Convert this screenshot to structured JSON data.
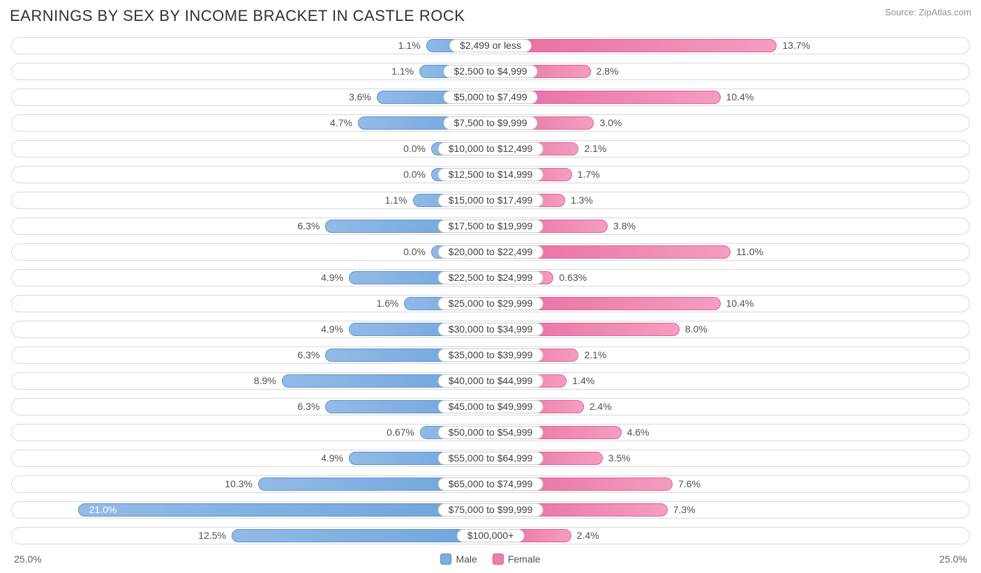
{
  "title": "EARNINGS BY SEX BY INCOME BRACKET IN CASTLE ROCK",
  "source": "Source: ZipAtlas.com",
  "axis_max": 25.0,
  "axis_left_label": "25.0%",
  "axis_right_label": "25.0%",
  "default_male_padding": 75,
  "default_female_padding": 75,
  "colors": {
    "male_start": "#93bae6",
    "male_end": "#6ea4dc",
    "male_border": "#5a93cf",
    "female_start": "#e76ba0",
    "female_end": "#f49ec0",
    "female_border": "#e06096",
    "track_border": "#d8d8d8",
    "text": "#505050",
    "title_text": "#303030",
    "source_text": "#909090",
    "background": "#ffffff"
  },
  "legend": {
    "male": "Male",
    "female": "Female",
    "male_color": "#7aaee0",
    "female_color": "#ed7fac"
  },
  "rows": [
    {
      "category": "$2,499 or less",
      "male": 1.1,
      "male_label": "1.1%",
      "female": 13.7,
      "female_label": "13.7%",
      "male_pad": 65
    },
    {
      "category": "$2,500 to $4,999",
      "male": 1.1,
      "male_label": "1.1%",
      "female": 2.8,
      "female_label": "2.8%"
    },
    {
      "category": "$5,000 to $7,499",
      "male": 3.6,
      "male_label": "3.6%",
      "female": 10.4,
      "female_label": "10.4%"
    },
    {
      "category": "$7,500 to $9,999",
      "male": 4.7,
      "male_label": "4.7%",
      "female": 3.0,
      "female_label": "3.0%"
    },
    {
      "category": "$10,000 to $12,499",
      "male": 0.0,
      "male_label": "0.0%",
      "female": 2.1,
      "female_label": "2.1%",
      "male_pad": 85
    },
    {
      "category": "$12,500 to $14,999",
      "male": 0.0,
      "male_label": "0.0%",
      "female": 1.7,
      "female_label": "1.7%",
      "male_pad": 85
    },
    {
      "category": "$15,000 to $17,499",
      "male": 1.1,
      "male_label": "1.1%",
      "female": 1.3,
      "female_label": "1.3%",
      "male_pad": 85
    },
    {
      "category": "$17,500 to $19,999",
      "male": 6.3,
      "male_label": "6.3%",
      "female": 3.8,
      "female_label": "3.8%",
      "male_pad": 85
    },
    {
      "category": "$20,000 to $22,499",
      "male": 0.0,
      "male_label": "0.0%",
      "female": 11.0,
      "female_label": "11.0%",
      "male_pad": 85
    },
    {
      "category": "$22,500 to $24,999",
      "male": 4.9,
      "male_label": "4.9%",
      "female": 0.63,
      "female_label": "0.63%",
      "male_pad": 85
    },
    {
      "category": "$25,000 to $29,999",
      "male": 1.6,
      "male_label": "1.6%",
      "female": 10.4,
      "female_label": "10.4%",
      "male_pad": 85
    },
    {
      "category": "$30,000 to $34,999",
      "male": 4.9,
      "male_label": "4.9%",
      "female": 8.0,
      "female_label": "8.0%",
      "male_pad": 85
    },
    {
      "category": "$35,000 to $39,999",
      "male": 6.3,
      "male_label": "6.3%",
      "female": 2.1,
      "female_label": "2.1%",
      "male_pad": 85
    },
    {
      "category": "$40,000 to $44,999",
      "male": 8.9,
      "male_label": "8.9%",
      "female": 1.4,
      "female_label": "1.4%",
      "male_pad": 85
    },
    {
      "category": "$45,000 to $49,999",
      "male": 6.3,
      "male_label": "6.3%",
      "female": 2.4,
      "female_label": "2.4%",
      "male_pad": 85
    },
    {
      "category": "$50,000 to $54,999",
      "male": 0.67,
      "male_label": "0.67%",
      "female": 4.6,
      "female_label": "4.6%",
      "male_pad": 85
    },
    {
      "category": "$55,000 to $64,999",
      "male": 4.9,
      "male_label": "4.9%",
      "female": 3.5,
      "female_label": "3.5%",
      "male_pad": 85
    },
    {
      "category": "$65,000 to $74,999",
      "male": 10.3,
      "male_label": "10.3%",
      "female": 7.6,
      "female_label": "7.6%",
      "male_pad": 85
    },
    {
      "category": "$75,000 to $99,999",
      "male": 21.0,
      "male_label": "21.0%",
      "female": 7.3,
      "female_label": "7.3%",
      "male_inside": true,
      "male_pad": 85
    },
    {
      "category": "$100,000+",
      "male": 12.5,
      "male_label": "12.5%",
      "female": 2.4,
      "female_label": "2.4%",
      "male_pad": 55,
      "female_pad": 55
    }
  ]
}
